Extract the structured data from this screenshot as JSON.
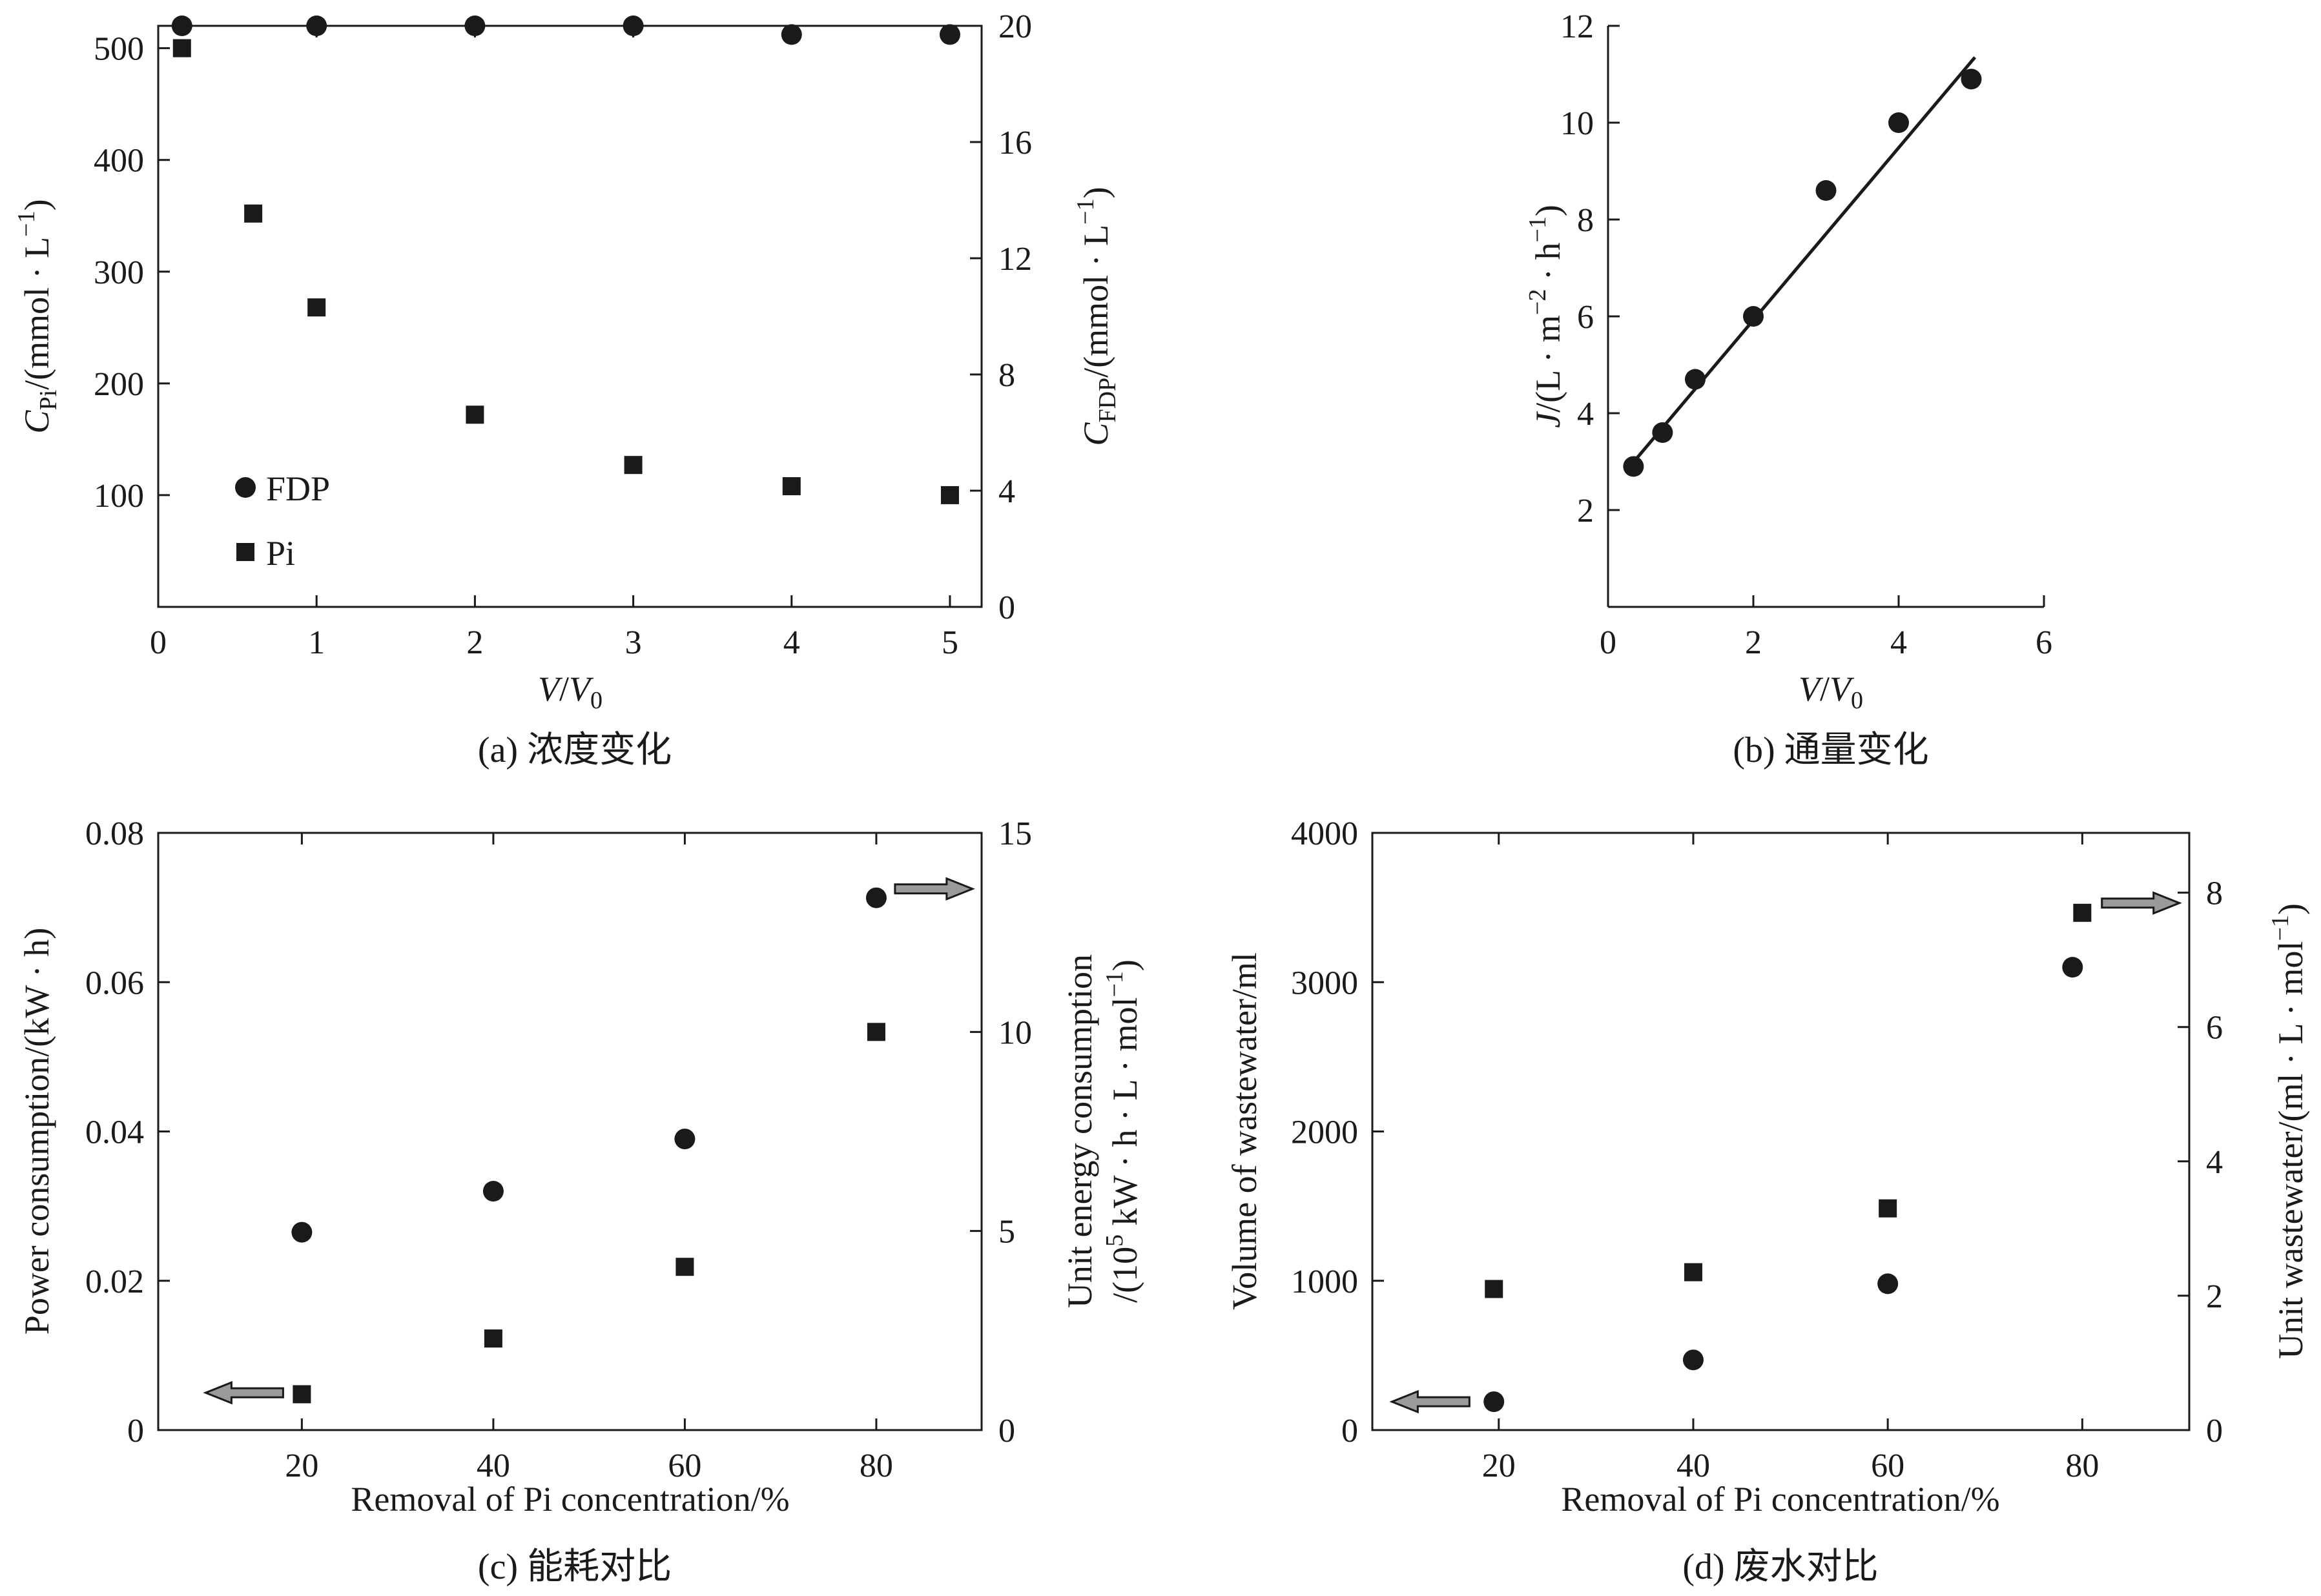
{
  "chart_data": [
    {
      "id": "a",
      "type": "scatter",
      "caption": "(a) 浓度变化",
      "xlabel": "V/V0",
      "ylabel_left": "C_Pi/(mmol · L^-1)",
      "ylabel_right": "C_FDP/(mmol · L^-1)",
      "xlim": [
        0,
        5.2
      ],
      "ylim_left": [
        0,
        520
      ],
      "ylim_right": [
        0,
        20
      ],
      "xticks": [
        0,
        1,
        2,
        3,
        4,
        5
      ],
      "yticks_left": [
        100,
        200,
        300,
        400,
        500
      ],
      "yticks_right": [
        0,
        4,
        8,
        12,
        16,
        20
      ],
      "legend": [
        {
          "label": "FDP",
          "marker": "circle"
        },
        {
          "label": "Pi",
          "marker": "square"
        }
      ],
      "series": [
        {
          "name": "FDP",
          "axis": "right",
          "marker": "circle",
          "x": [
            0.15,
            1.0,
            2.0,
            3.0,
            4.0,
            5.0
          ],
          "y": [
            20.0,
            20.0,
            20.0,
            20.0,
            19.7,
            19.7
          ]
        },
        {
          "name": "Pi",
          "axis": "left",
          "marker": "square",
          "x": [
            0.15,
            0.6,
            1.0,
            2.0,
            3.0,
            4.0,
            5.0
          ],
          "y": [
            500,
            352,
            268,
            172,
            127,
            108,
            100
          ]
        }
      ]
    },
    {
      "id": "b",
      "type": "scatter",
      "caption": "(b) 通量变化",
      "xlabel": "V/V0",
      "ylabel_left": "J/(L · m^-2 · h^-1)",
      "xlim": [
        0,
        6
      ],
      "ylim_left": [
        0,
        12
      ],
      "xticks": [
        0,
        2,
        4,
        6
      ],
      "yticks_left": [
        2,
        4,
        6,
        8,
        10,
        12
      ],
      "series": [
        {
          "name": "",
          "axis": "left",
          "marker": "circle",
          "x": [
            0.35,
            0.75,
            1.2,
            2.0,
            3.0,
            4.0,
            5.0
          ],
          "y": [
            2.9,
            3.6,
            4.7,
            6.0,
            8.6,
            10.0,
            10.9
          ]
        }
      ],
      "fit_line": {
        "x": [
          0.3,
          5.05
        ],
        "y": [
          2.9,
          11.35
        ]
      }
    },
    {
      "id": "c",
      "type": "scatter",
      "caption": "(c) 能耗对比",
      "xlabel": "Removal of Pi concentration/%",
      "ylabel_left": "Power consumption/(kW · h)",
      "ylabel_right_1": "Unit energy consumption",
      "ylabel_right_2": "/(10^5 kW · h · L · mol^-1)",
      "xlim": [
        5,
        91
      ],
      "ylim_left": [
        0,
        0.08
      ],
      "ylim_right": [
        0,
        15
      ],
      "xticks": [
        20,
        40,
        60,
        80
      ],
      "yticks_left": [
        0,
        0.02,
        0.04,
        0.06,
        0.08
      ],
      "yticks_right": [
        0,
        5,
        10,
        15
      ],
      "series": [
        {
          "name": "",
          "axis": "left",
          "marker": "circle",
          "x": [
            20,
            40,
            60,
            80
          ],
          "y": [
            0.0265,
            0.032,
            0.039,
            0.0713
          ]
        },
        {
          "name": "",
          "axis": "right",
          "marker": "square",
          "x": [
            20,
            40,
            60,
            80
          ],
          "y": [
            0.9,
            2.3,
            4.1,
            10.0
          ]
        }
      ],
      "arrows": [
        {
          "direction": "left",
          "x": 14,
          "y_left": 0.005
        },
        {
          "direction": "right",
          "x": 86,
          "y_left": 0.0725
        }
      ]
    },
    {
      "id": "d",
      "type": "scatter",
      "caption": "(d) 废水对比",
      "xlabel": "Removal of Pi concentration/%",
      "ylabel_left": "Volume of wastewater/ml",
      "ylabel_right": "Unit wastewater/(ml · L · mol^-1)",
      "xlim": [
        7,
        91
      ],
      "ylim_left": [
        0,
        4000
      ],
      "ylim_right": [
        0,
        8.89
      ],
      "xticks": [
        20,
        40,
        60,
        80
      ],
      "yticks_left": [
        0,
        1000,
        2000,
        3000,
        4000
      ],
      "yticks_right": [
        0,
        2,
        4,
        6,
        8
      ],
      "series": [
        {
          "name": "",
          "axis": "left",
          "marker": "circle",
          "x": [
            19.5,
            40,
            60,
            79
          ],
          "y": [
            190,
            470,
            980,
            3100
          ]
        },
        {
          "name": "",
          "axis": "right",
          "marker": "square",
          "x": [
            19.5,
            40,
            60,
            80
          ],
          "y": [
            2.1,
            2.35,
            3.3,
            7.7
          ]
        }
      ],
      "arrows": [
        {
          "direction": "left",
          "x": 13,
          "y_left": 190
        },
        {
          "direction": "right",
          "x": 86,
          "y_left": 3530
        }
      ]
    }
  ]
}
